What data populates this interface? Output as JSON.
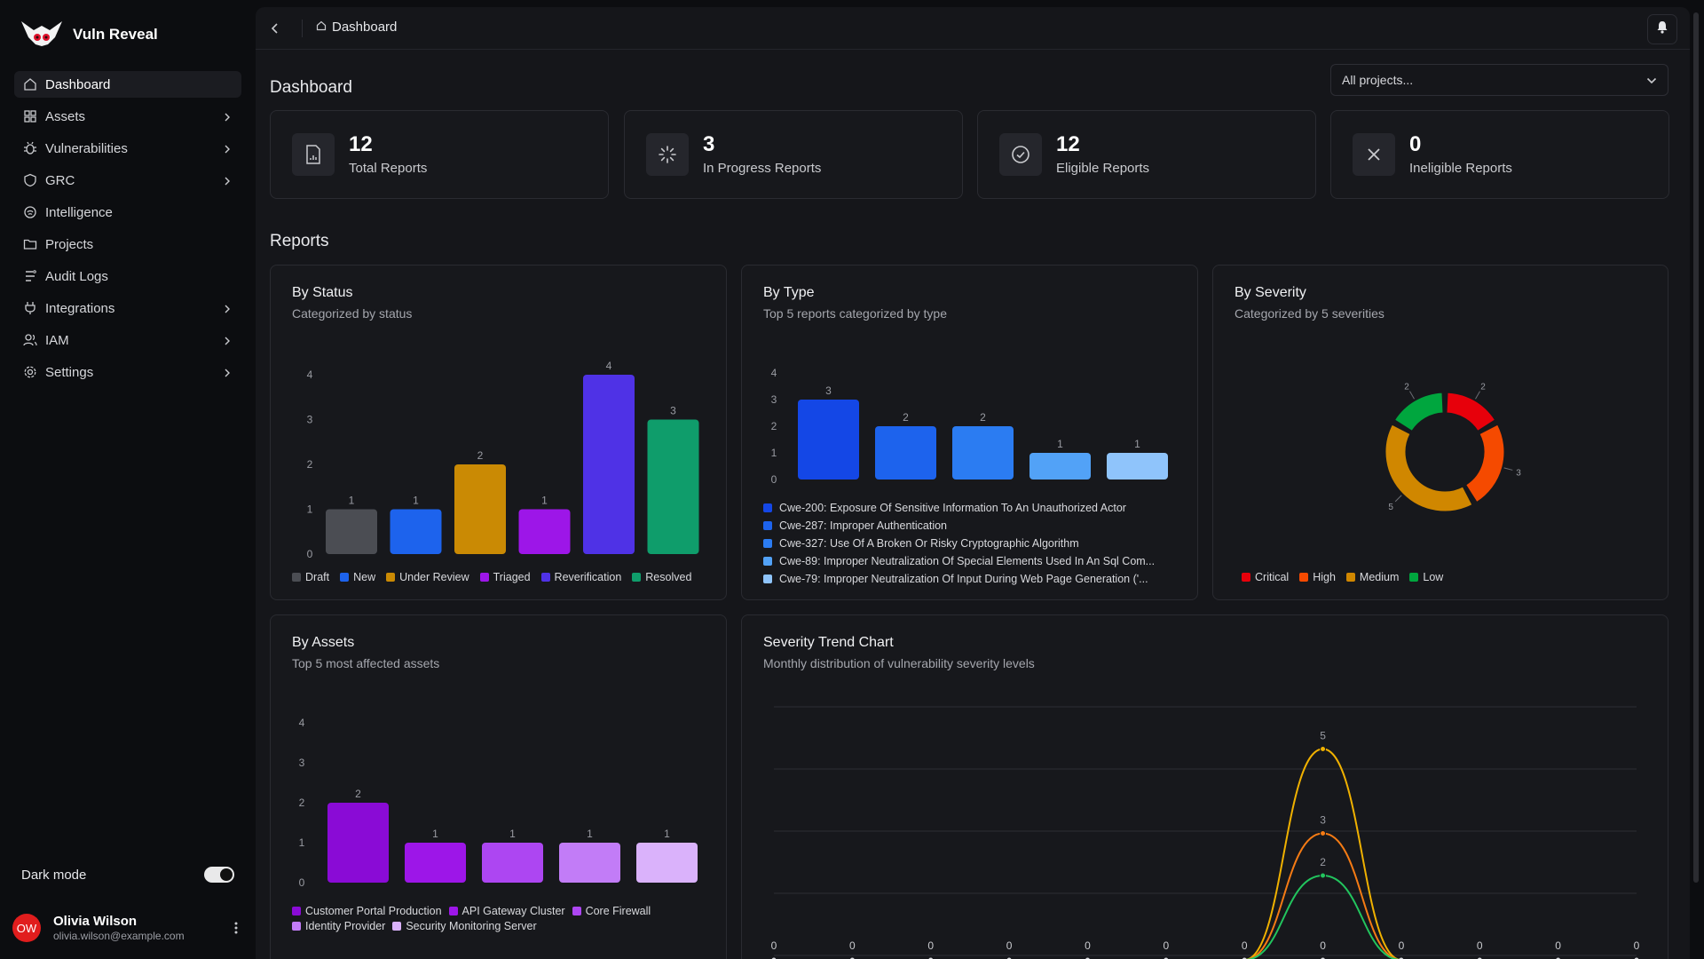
{
  "app": {
    "name": "Vuln Reveal"
  },
  "sidebar": {
    "items": [
      {
        "label": "Dashboard",
        "icon": "home-icon",
        "active": true,
        "expandable": false
      },
      {
        "label": "Assets",
        "icon": "assets-icon",
        "expandable": true
      },
      {
        "label": "Vulnerabilities",
        "icon": "bug-icon",
        "expandable": true
      },
      {
        "label": "GRC",
        "icon": "shield-icon",
        "expandable": true
      },
      {
        "label": "Intelligence",
        "icon": "intelligence-icon",
        "expandable": false
      },
      {
        "label": "Projects",
        "icon": "folder-icon",
        "expandable": false
      },
      {
        "label": "Audit Logs",
        "icon": "logs-icon",
        "expandable": false
      },
      {
        "label": "Integrations",
        "icon": "plug-icon",
        "expandable": true
      },
      {
        "label": "IAM",
        "icon": "users-icon",
        "expandable": true
      },
      {
        "label": "Settings",
        "icon": "gear-icon",
        "expandable": true
      }
    ],
    "dark_mode_label": "Dark mode",
    "dark_mode_on": true,
    "user": {
      "initials": "OW",
      "name": "Olivia Wilson",
      "email": "olivia.wilson@example.com"
    }
  },
  "topbar": {
    "breadcrumb": "Dashboard"
  },
  "page": {
    "title": "Dashboard",
    "project_select": "All projects...",
    "section_title": "Reports"
  },
  "stats": [
    {
      "value": "12",
      "label": "Total Reports",
      "icon": "report-file-icon"
    },
    {
      "value": "3",
      "label": "In Progress Reports",
      "icon": "spinner-icon"
    },
    {
      "value": "12",
      "label": "Eligible Reports",
      "icon": "check-circle-icon"
    },
    {
      "value": "0",
      "label": "Ineligible Reports",
      "icon": "x-icon"
    }
  ],
  "cards": {
    "status": {
      "title": "By Status",
      "subtitle": "Categorized by status"
    },
    "type": {
      "title": "By Type",
      "subtitle": "Top 5 reports categorized by type"
    },
    "severity": {
      "title": "By Severity",
      "subtitle": "Categorized by 5 severities"
    },
    "assets": {
      "title": "By Assets",
      "subtitle": "Top 5 most affected assets"
    },
    "trend": {
      "title": "Severity Trend Chart",
      "subtitle": "Monthly distribution of vulnerability severity levels"
    }
  },
  "chart_data": [
    {
      "id": "status",
      "type": "bar",
      "categories": [
        "Draft",
        "New",
        "Under Review",
        "Triaged",
        "Reverification",
        "Resolved"
      ],
      "values": [
        1,
        1,
        2,
        1,
        4,
        3
      ],
      "colors": [
        "#4b4d53",
        "#1d63ed",
        "#ca8a04",
        "#9d16e8",
        "#4f32e6",
        "#0f9d6b"
      ],
      "yticks": [
        0,
        1,
        2,
        3,
        4
      ],
      "ylim": [
        0,
        4
      ]
    },
    {
      "id": "type",
      "type": "bar",
      "categories": [
        "Cwe-200: Exposure Of Sensitive Information To An Unauthorized Actor",
        "Cwe-287: Improper Authentication",
        "Cwe-327: Use Of A Broken Or Risky Cryptographic Algorithm",
        "Cwe-89: Improper Neutralization Of Special Elements Used In An Sql Com...",
        "Cwe-79: Improper Neutralization Of Input During Web Page Generation ('..."
      ],
      "values": [
        3,
        2,
        2,
        1,
        1
      ],
      "colors": [
        "#1447e6",
        "#1d63ed",
        "#2b7cf2",
        "#52a2f7",
        "#8fc4fb"
      ],
      "yticks": [
        0,
        1,
        2,
        3,
        4
      ],
      "ylim": [
        0,
        4
      ]
    },
    {
      "id": "severity",
      "type": "pie",
      "categories": [
        "Critical",
        "High",
        "Medium",
        "Low"
      ],
      "values": [
        2,
        3,
        5,
        2
      ],
      "colors": [
        "#e7000b",
        "#f54a00",
        "#d08700",
        "#00a63e"
      ]
    },
    {
      "id": "assets",
      "type": "bar",
      "categories": [
        "Customer Portal Production",
        "API Gateway Cluster",
        "Core Firewall",
        "Identity Provider",
        "Security Monitoring Server"
      ],
      "values": [
        2,
        1,
        1,
        1,
        1
      ],
      "colors": [
        "#8a0bd6",
        "#9d16e8",
        "#ad46f2",
        "#c27cf7",
        "#dab2fb"
      ],
      "yticks": [
        0,
        1,
        2,
        3,
        4
      ],
      "ylim": [
        0,
        4
      ]
    },
    {
      "id": "trend",
      "type": "line",
      "points": 12,
      "peak_index": 7,
      "series": [
        {
          "values": [
            0,
            0,
            0,
            0,
            0,
            0,
            0,
            5,
            0,
            0,
            0,
            0
          ],
          "color": "#f0b100"
        },
        {
          "values": [
            0,
            0,
            0,
            0,
            0,
            0,
            0,
            3,
            0,
            0,
            0,
            0
          ],
          "color": "#f57b14"
        },
        {
          "values": [
            0,
            0,
            0,
            0,
            0,
            0,
            0,
            2,
            0,
            0,
            0,
            0
          ],
          "color": "#22c55e"
        }
      ],
      "point_labels": [
        "0",
        "0",
        "0",
        "0",
        "0",
        "0",
        "0",
        "0",
        "0",
        "0",
        "0",
        "0"
      ],
      "peak_labels": [
        "5",
        "3",
        "2"
      ]
    }
  ]
}
